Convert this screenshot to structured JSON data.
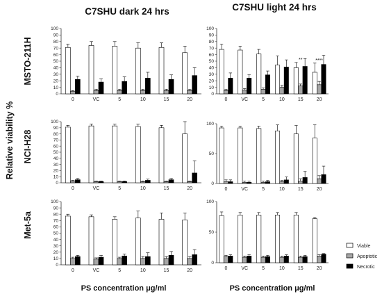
{
  "figure": {
    "column_titles": [
      "C7SHU dark 24 hrs",
      "C7SHU light 24 hrs"
    ],
    "row_labels": [
      "MSTO-211H",
      "NCI-H28",
      "Met-5a"
    ],
    "y_axis_label": "Relative viability %",
    "x_axis_labels": [
      "PS concentration μg/ml",
      "PS concentration μg/ml"
    ]
  },
  "legend": {
    "items": [
      {
        "label": "Viable",
        "color": "#ffffff"
      },
      {
        "label": "Apoptotic",
        "color": "#a6a6a6"
      },
      {
        "label": "Necrotic",
        "color": "#000000"
      }
    ]
  },
  "chart_data": [
    {
      "type": "bar",
      "panel": "MSTO-211H dark",
      "categories": [
        "0",
        "VC",
        "5",
        "10",
        "15",
        "20"
      ],
      "ylim": [
        0,
        100
      ],
      "yticks": [
        "0",
        "10",
        "20",
        "30",
        "40",
        "50",
        "60",
        "70",
        "80",
        "90",
        "100"
      ],
      "series": [
        {
          "name": "Viable",
          "values": [
            71,
            74,
            73,
            70,
            71,
            63
          ],
          "errors": [
            5,
            6,
            7,
            8,
            7,
            10
          ]
        },
        {
          "name": "Apoptotic",
          "values": [
            4,
            5,
            5,
            5,
            5,
            5
          ],
          "errors": [
            1,
            2,
            2,
            2,
            2,
            2
          ]
        },
        {
          "name": "Necrotic",
          "values": [
            22,
            18,
            19,
            24,
            22,
            28
          ],
          "errors": [
            5,
            5,
            7,
            9,
            7,
            12
          ]
        }
      ],
      "annotations": []
    },
    {
      "type": "bar",
      "panel": "MSTO-211H light",
      "categories": [
        "0",
        "VC",
        "5",
        "10",
        "15",
        "20"
      ],
      "ylim": [
        0,
        100
      ],
      "yticks": [
        "0",
        "10",
        "20",
        "30",
        "40",
        "50",
        "60",
        "70",
        "80",
        "90",
        "100"
      ],
      "series": [
        {
          "name": "Viable",
          "values": [
            68,
            67,
            61,
            44,
            40,
            33
          ],
          "errors": [
            8,
            6,
            7,
            14,
            8,
            14
          ]
        },
        {
          "name": "Apoptotic",
          "values": [
            5,
            6,
            7,
            10,
            12,
            14
          ],
          "errors": [
            2,
            2,
            2,
            3,
            3,
            5
          ]
        },
        {
          "name": "Necrotic",
          "values": [
            24,
            24,
            29,
            41,
            42,
            45
          ],
          "errors": [
            8,
            5,
            6,
            11,
            12,
            14
          ]
        }
      ],
      "annotations": [
        {
          "category": "15",
          "text": "**"
        },
        {
          "category": "20",
          "text": "****"
        }
      ]
    },
    {
      "type": "bar",
      "panel": "NCI-H28 dark",
      "categories": [
        "0",
        "VC",
        "5",
        "10",
        "15",
        "20"
      ],
      "ylim": [
        0,
        100
      ],
      "yticks": [
        "0",
        "10",
        "20",
        "30",
        "40",
        "50",
        "60",
        "70",
        "80",
        "90",
        "100"
      ],
      "series": [
        {
          "name": "Viable",
          "values": [
            91,
            93,
            93,
            92,
            90,
            80
          ],
          "errors": [
            3,
            3,
            3,
            4,
            4,
            20
          ]
        },
        {
          "name": "Apoptotic",
          "values": [
            3,
            2,
            2,
            2,
            2,
            2
          ],
          "errors": [
            1,
            1,
            1,
            1,
            1,
            1
          ]
        },
        {
          "name": "Necrotic",
          "values": [
            5,
            2,
            2,
            4,
            5,
            16
          ],
          "errors": [
            2,
            1,
            1,
            2,
            2,
            20
          ]
        }
      ],
      "annotations": []
    },
    {
      "type": "bar",
      "panel": "NCI-H28 light",
      "categories": [
        "0",
        "VC",
        "5",
        "10",
        "15",
        "20"
      ],
      "ylim": [
        0,
        100
      ],
      "yticks": [
        "0",
        "50",
        "100"
      ],
      "series": [
        {
          "name": "Viable",
          "values": [
            93,
            93,
            92,
            88,
            83,
            76
          ],
          "errors": [
            3,
            3,
            4,
            10,
            14,
            22
          ]
        },
        {
          "name": "Apoptotic",
          "values": [
            3,
            2,
            2,
            3,
            4,
            8
          ],
          "errors": [
            3,
            2,
            2,
            2,
            4,
            5
          ]
        },
        {
          "name": "Necrotic",
          "values": [
            3,
            2,
            3,
            6,
            10,
            15
          ],
          "errors": [
            3,
            2,
            2,
            5,
            10,
            14
          ]
        }
      ],
      "annotations": []
    },
    {
      "type": "bar",
      "panel": "Met-5a dark",
      "categories": [
        "0",
        "VC",
        "5",
        "10",
        "15",
        "20"
      ],
      "ylim": [
        0,
        100
      ],
      "yticks": [
        "0",
        "10",
        "20",
        "30",
        "40",
        "50",
        "60",
        "70",
        "80",
        "90",
        "100"
      ],
      "series": [
        {
          "name": "Viable",
          "values": [
            77,
            76,
            72,
            74,
            72,
            71
          ],
          "errors": [
            3,
            3,
            4,
            11,
            10,
            11
          ]
        },
        {
          "name": "Apoptotic",
          "values": [
            10,
            9,
            10,
            10,
            10,
            10
          ],
          "errors": [
            2,
            2,
            2,
            3,
            3,
            3
          ]
        },
        {
          "name": "Necrotic",
          "values": [
            13,
            12,
            14,
            13,
            15,
            16
          ],
          "errors": [
            2,
            3,
            3,
            6,
            6,
            8
          ]
        }
      ],
      "annotations": []
    },
    {
      "type": "bar",
      "panel": "Met-5a light",
      "categories": [
        "0",
        "VC",
        "5",
        "10",
        "15",
        "20"
      ],
      "ylim": [
        0,
        100
      ],
      "yticks": [
        "0",
        "50",
        "100"
      ],
      "series": [
        {
          "name": "Viable",
          "values": [
            77,
            78,
            78,
            78,
            78,
            72
          ],
          "errors": [
            6,
            4,
            4,
            4,
            4,
            2
          ]
        },
        {
          "name": "Apoptotic",
          "values": [
            10,
            9,
            9,
            9,
            9,
            11
          ],
          "errors": [
            2,
            2,
            2,
            2,
            2,
            2
          ]
        },
        {
          "name": "Necrotic",
          "values": [
            11,
            11,
            10,
            11,
            10,
            14
          ],
          "errors": [
            2,
            2,
            2,
            2,
            2,
            1
          ]
        }
      ],
      "annotations": []
    }
  ]
}
